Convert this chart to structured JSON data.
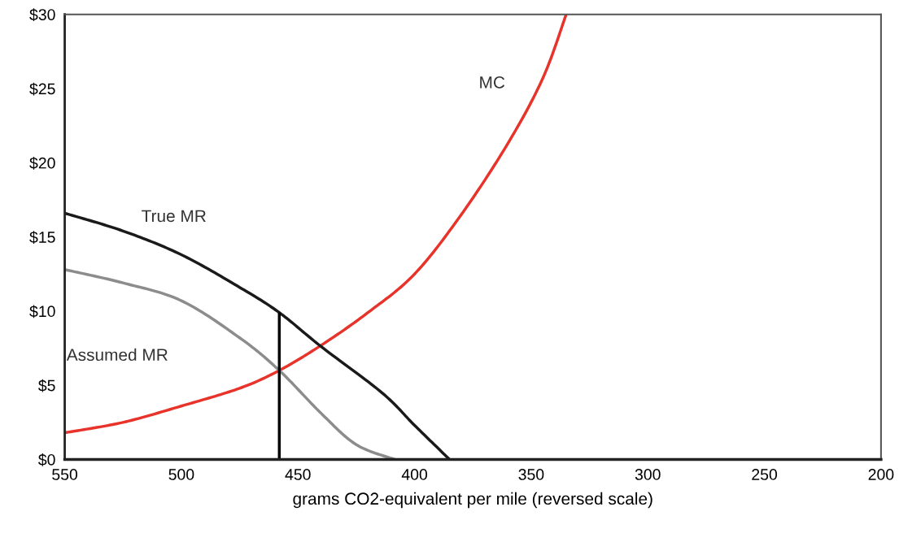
{
  "chart_data": {
    "type": "line",
    "xlabel": "grams CO2-equivalent per mile (reversed scale)",
    "xlim": [
      550,
      200
    ],
    "xticks": [
      550,
      500,
      450,
      400,
      350,
      300,
      250,
      200
    ],
    "ylim": [
      0,
      30
    ],
    "yticks": [
      {
        "value": 0,
        "label": "$0"
      },
      {
        "value": 5,
        "label": "$5"
      },
      {
        "value": 10,
        "label": "$10"
      },
      {
        "value": 15,
        "label": "$15"
      },
      {
        "value": 20,
        "label": "$20"
      },
      {
        "value": 25,
        "label": "$25"
      },
      {
        "value": 30,
        "label": "$30"
      }
    ],
    "grid": false,
    "legend": false,
    "series": [
      {
        "name": "MC",
        "color": "#e8332a",
        "x": [
          550,
          525,
          500,
          475,
          458,
          440,
          420,
          400,
          380,
          360,
          345,
          335
        ],
        "values": [
          1.8,
          2.5,
          3.6,
          4.8,
          6.0,
          7.7,
          9.9,
          12.5,
          16.5,
          21.3,
          25.7,
          30
        ]
      },
      {
        "name": "True MR",
        "color": "#1a1a1a",
        "x": [
          550,
          525,
          500,
          475,
          458,
          440,
          414,
          400,
          385
        ],
        "values": [
          16.6,
          15.4,
          13.8,
          11.6,
          9.9,
          7.6,
          4.5,
          2.3,
          0
        ]
      },
      {
        "name": "Assumed MR",
        "color": "#8c8c8c",
        "x": [
          550,
          525,
          500,
          475,
          458,
          440,
          425,
          408.5
        ],
        "values": [
          12.8,
          11.9,
          10.7,
          8.2,
          6.0,
          3.1,
          1.0,
          0
        ]
      },
      {
        "color": "#000000",
        "x": [
          458,
          458
        ],
        "values": [
          0,
          9.9
        ]
      }
    ]
  }
}
